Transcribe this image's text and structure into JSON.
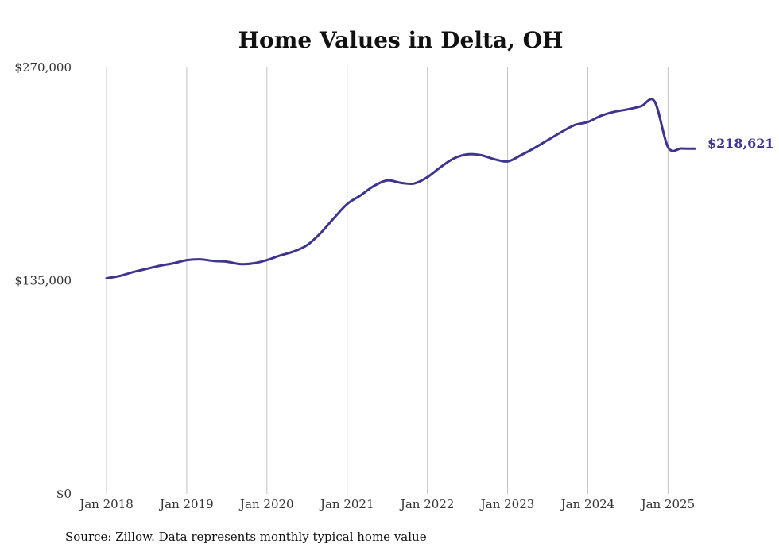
{
  "chart_data": {
    "type": "line",
    "title": "Home Values in Delta, OH",
    "xlabel": "",
    "ylabel": "",
    "ylim": [
      0,
      270000
    ],
    "yticks": [
      {
        "value": 0,
        "label": "$0"
      },
      {
        "value": 135000,
        "label": "$135,000"
      },
      {
        "value": 270000,
        "label": "$270,000"
      }
    ],
    "xticks": [
      {
        "value": "2018-01",
        "label": "Jan 2018"
      },
      {
        "value": "2019-01",
        "label": "Jan 2019"
      },
      {
        "value": "2020-01",
        "label": "Jan 2020"
      },
      {
        "value": "2021-01",
        "label": "Jan 2021"
      },
      {
        "value": "2022-01",
        "label": "Jan 2022"
      },
      {
        "value": "2023-01",
        "label": "Jan 2023"
      },
      {
        "value": "2024-01",
        "label": "Jan 2024"
      },
      {
        "value": "2025-01",
        "label": "Jan 2025"
      }
    ],
    "xlim": [
      "2018-01",
      "2025-05"
    ],
    "grid": {
      "vertical": true,
      "horizontal": false
    },
    "series": [
      {
        "color": "#3d3590",
        "x": [
          "2018-01",
          "2018-03",
          "2018-05",
          "2018-07",
          "2018-09",
          "2018-11",
          "2019-01",
          "2019-03",
          "2019-05",
          "2019-07",
          "2019-09",
          "2019-11",
          "2020-01",
          "2020-03",
          "2020-05",
          "2020-07",
          "2020-09",
          "2020-11",
          "2021-01",
          "2021-03",
          "2021-05",
          "2021-07",
          "2021-09",
          "2021-11",
          "2022-01",
          "2022-03",
          "2022-05",
          "2022-07",
          "2022-09",
          "2022-11",
          "2023-01",
          "2023-03",
          "2023-05",
          "2023-07",
          "2023-09",
          "2023-11",
          "2024-01",
          "2024-03",
          "2024-05",
          "2024-07",
          "2024-09",
          "2024-11",
          "2025-01",
          "2025-03",
          "2025-05"
        ],
        "values": [
          136500,
          138000,
          140500,
          142500,
          144500,
          146000,
          148000,
          148500,
          147500,
          147000,
          145500,
          146000,
          148000,
          151000,
          153500,
          157500,
          165000,
          174500,
          183500,
          189000,
          195000,
          198500,
          197000,
          196500,
          200500,
          207000,
          212500,
          215000,
          214500,
          212000,
          210500,
          214500,
          219000,
          224000,
          229000,
          233500,
          235500,
          239500,
          242000,
          243500,
          245500,
          248500,
          219500,
          218700,
          218621
        ]
      }
    ],
    "end_label": "$218,621"
  },
  "footer": {
    "source": "Source: Zillow. Data represents monthly typical home value"
  }
}
